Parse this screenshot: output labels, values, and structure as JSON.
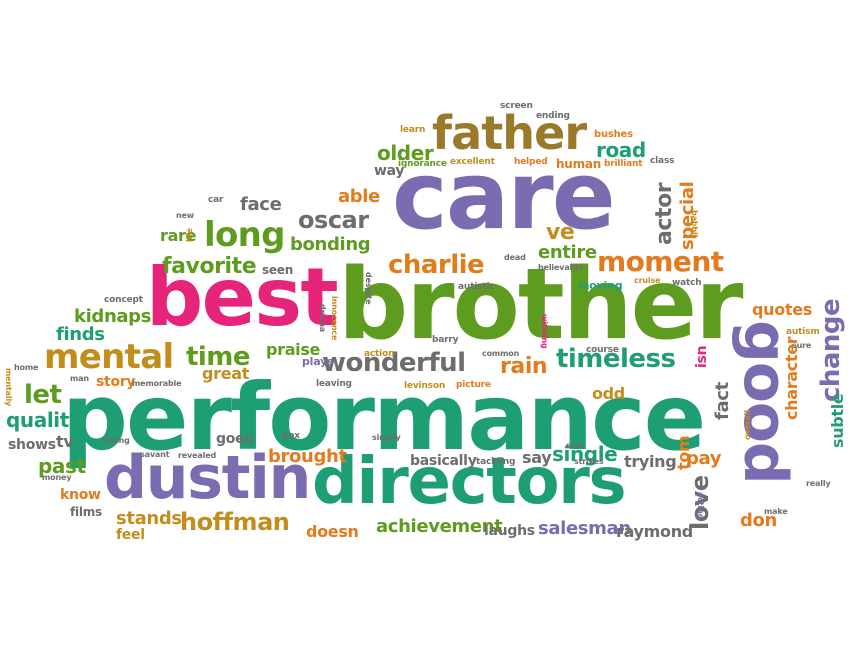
{
  "colors": {
    "green": "#1e9e74",
    "olive": "#5e9c1f",
    "purple": "#7b6bb0",
    "orange": "#e27b1c",
    "pink": "#e5247a",
    "gold": "#c28d1d",
    "brown": "#9a7a2a",
    "gray": "#6d6d6d",
    "red": "#d8322a"
  },
  "words": {
    "performance": "performance",
    "brother": "brother",
    "care": "care",
    "best": "best",
    "directors": "directors",
    "dustin": "dustin",
    "good": "good",
    "father": "father",
    "mental": "mental",
    "long": "long",
    "charlie": "charlie",
    "wonderful": "wonderful",
    "moment": "moment",
    "timeless": "timeless",
    "hoffman": "hoffman",
    "change": "change",
    "oscar": "oscar",
    "favorite": "favorite",
    "time": "time",
    "actor": "actor",
    "love": "love",
    "road": "road",
    "older": "older",
    "let": "let",
    "quality": "quality",
    "past": "past",
    "rain": "rain",
    "single": "single",
    "salesman": "salesman",
    "raymond": "raymond",
    "achievement": "achievement",
    "stands": "stands",
    "brought": "brought",
    "kidnaps": "kidnaps",
    "finds": "finds",
    "great": "great",
    "story": "story",
    "praise": "praise",
    "face": "face",
    "bonding": "bonding",
    "able": "able",
    "entire": "entire",
    "ve": "ve",
    "rare": "rare",
    "special": "special",
    "character": "character",
    "subtle": "subtle",
    "quotes": "quotes",
    "fact": "fact",
    "pay": "pay",
    "tom": "tom",
    "don": "don",
    "odd": "odd",
    "isn": "isn",
    "say": "say",
    "trying": "trying",
    "basically": "basically",
    "doesn": "doesn",
    "laughs": "laughs",
    "goes": "goes",
    "shows": "shows",
    "tv": "tv",
    "know": "know",
    "feel": "feel",
    "films": "films",
    "seen": "seen",
    "human": "human",
    "way": "way",
    "learn": "learn",
    "bushes": "bushes",
    "ending": "ending",
    "screen": "screen",
    "ignorance": "ignorance",
    "excellent": "excellent",
    "helped": "helped",
    "brilliant": "brilliant",
    "class": "class",
    "autistic": "autistic",
    "barry": "barry",
    "common": "common",
    "action": "action",
    "levinson": "levinson",
    "picture": "picture",
    "course": "course",
    "moving": "moving",
    "cruise": "cruise",
    "watch": "watch",
    "believable": "believable",
    "dead": "dead",
    "despite": "despite",
    "drama": "drama",
    "innocence": "innocence",
    "plays": "plays",
    "leaving": "leaving",
    "simply": "simply",
    "box": "box",
    "revealed": "revealed",
    "savant": "savant",
    "taking": "taking",
    "money": "money",
    "memorable": "memorable",
    "man": "man",
    "home": "home",
    "mentally": "mentally",
    "concept": "concept",
    "new": "new",
    "car": "car",
    "life": "life",
    "babbit": "babbit",
    "autism": "autism",
    "sure": "sure",
    "really": "really",
    "make": "make",
    "acting": "acting",
    "overall": "overall",
    "tackling": "tackling",
    "sort": "sort",
    "strikes": "strikes",
    "winning": "winning"
  }
}
